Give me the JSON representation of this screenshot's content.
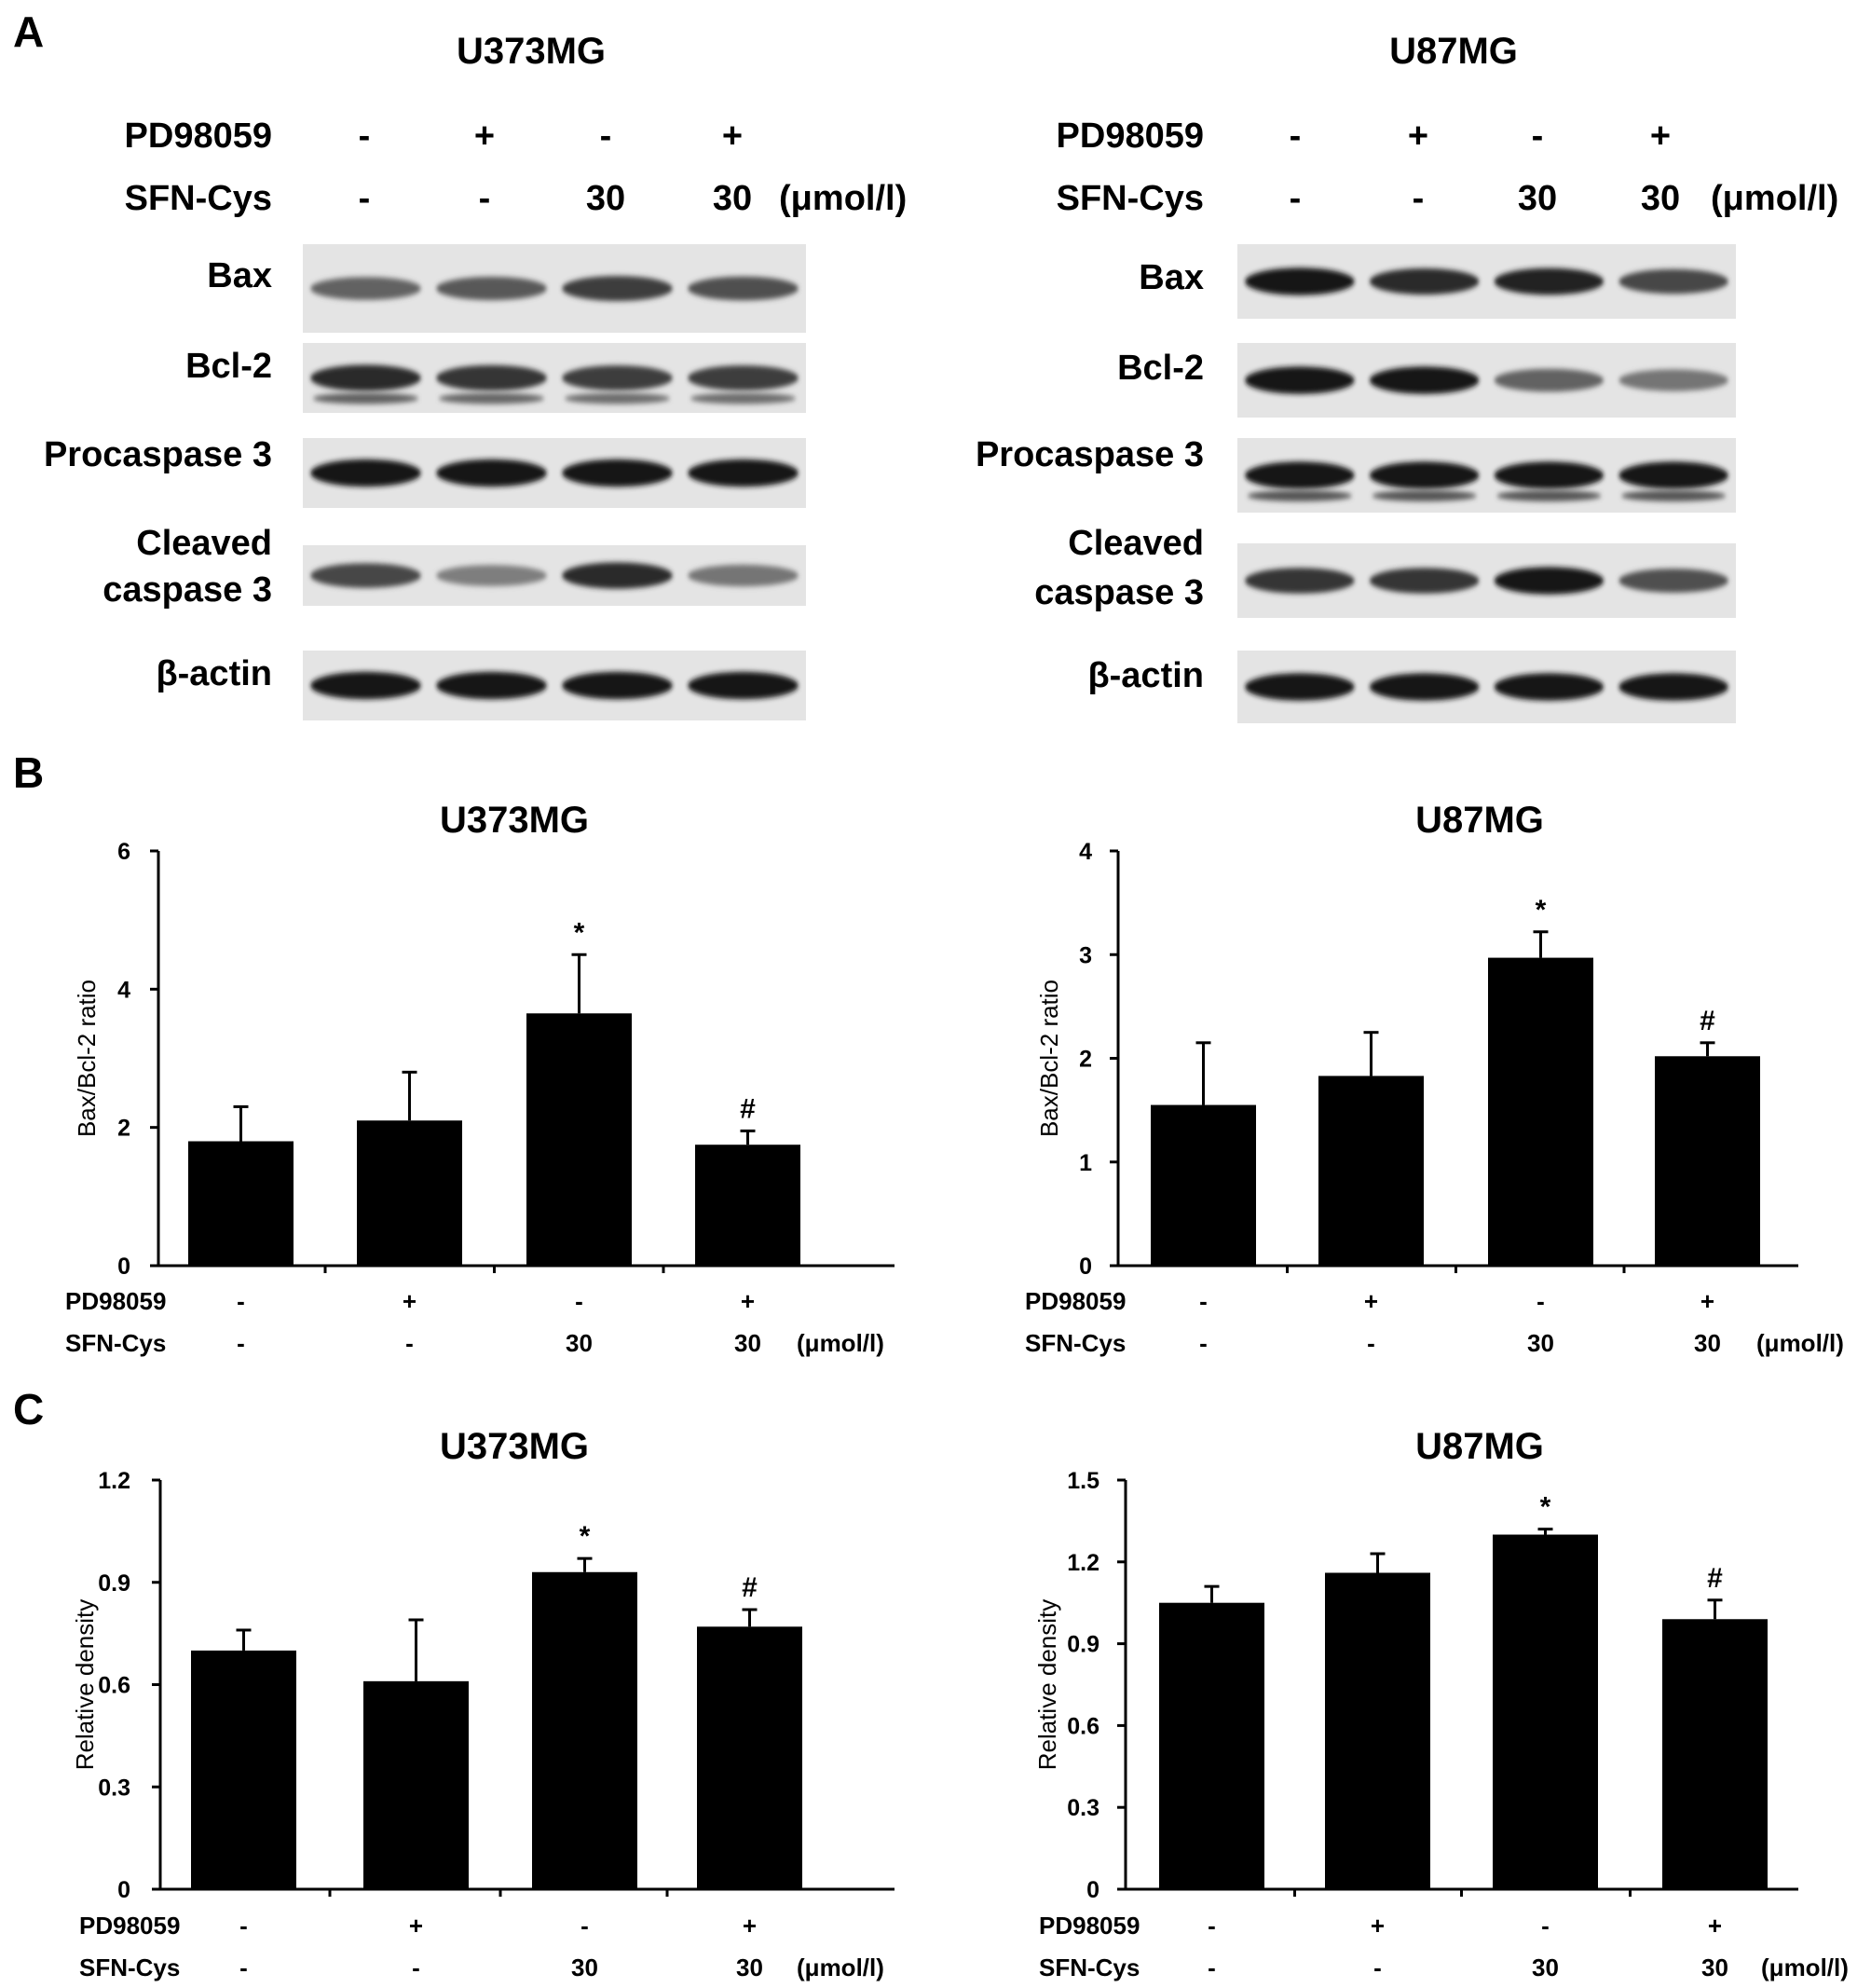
{
  "panels": [
    {
      "letter": "A"
    },
    {
      "letter": "B"
    },
    {
      "letter": "C"
    }
  ],
  "blots": [
    {
      "title": "U373MG",
      "treatments": [
        {
          "label": "PD98059",
          "values": [
            "-",
            "+",
            "-",
            "+"
          ]
        },
        {
          "label": "SFN-Cys",
          "values": [
            "-",
            "-",
            "30",
            "30"
          ],
          "unit": "(μmol/l)"
        }
      ],
      "bands": [
        {
          "label": "Bax",
          "intensity": [
            0.55,
            0.6,
            0.75,
            0.65
          ],
          "second_band": false
        },
        {
          "label": "Bcl-2",
          "intensity": [
            0.85,
            0.8,
            0.75,
            0.75
          ],
          "second_band": true
        },
        {
          "label": "Procaspase 3",
          "intensity": [
            0.95,
            0.95,
            0.95,
            0.95
          ],
          "second_band": false
        },
        {
          "label_lines": [
            "Cleaved",
            "caspase 3"
          ],
          "intensity": [
            0.7,
            0.4,
            0.85,
            0.45
          ],
          "second_band": false
        },
        {
          "label": "β-actin",
          "intensity": [
            0.95,
            0.95,
            0.95,
            0.95
          ],
          "second_band": false
        }
      ]
    },
    {
      "title": "U87MG",
      "treatments": [
        {
          "label": "PD98059",
          "values": [
            "-",
            "+",
            "-",
            "+"
          ]
        },
        {
          "label": "SFN-Cys",
          "values": [
            "-",
            "-",
            "30",
            "30"
          ],
          "unit": "(μmol/l)"
        }
      ],
      "bands": [
        {
          "label": "Bax",
          "intensity": [
            0.95,
            0.85,
            0.9,
            0.7
          ],
          "second_band": false
        },
        {
          "label": "Bcl-2",
          "intensity": [
            0.95,
            0.95,
            0.55,
            0.45
          ],
          "second_band": false
        },
        {
          "label": "Procaspase 3",
          "intensity": [
            0.95,
            0.95,
            0.95,
            0.95
          ],
          "second_band": true
        },
        {
          "label_lines": [
            "Cleaved",
            "caspase 3"
          ],
          "intensity": [
            0.8,
            0.8,
            0.95,
            0.65
          ],
          "second_band": false
        },
        {
          "label": "β-actin",
          "intensity": [
            0.95,
            0.95,
            0.95,
            0.95
          ],
          "second_band": false
        }
      ]
    }
  ],
  "chart_data": [
    {
      "type": "bar",
      "panel": "B",
      "title": "U373MG",
      "ylabel": "Bax/Bcl-2 ratio",
      "ylim": [
        0,
        6
      ],
      "yticks": [
        0,
        2,
        4,
        6
      ],
      "tick_labels": [
        "0",
        "2",
        "4",
        "6"
      ],
      "values": [
        1.8,
        2.1,
        3.65,
        1.75
      ],
      "errors": [
        0.5,
        0.7,
        0.85,
        0.2
      ],
      "annotations": [
        "",
        "",
        "*",
        "#"
      ],
      "rows": [
        {
          "label": "PD98059",
          "values": [
            "-",
            "+",
            "-",
            "+"
          ]
        },
        {
          "label": "SFN-Cys",
          "values": [
            "-",
            "-",
            "30",
            "30"
          ],
          "unit": "(μmol/l)"
        }
      ]
    },
    {
      "type": "bar",
      "panel": "B",
      "title": "U87MG",
      "ylabel": "Bax/Bcl-2 ratio",
      "ylim": [
        0,
        4
      ],
      "yticks": [
        0,
        1,
        2,
        3,
        4
      ],
      "tick_labels": [
        "0",
        "1",
        "2",
        "3",
        "4"
      ],
      "values": [
        1.55,
        1.83,
        2.97,
        2.02
      ],
      "errors": [
        0.6,
        0.42,
        0.25,
        0.13
      ],
      "annotations": [
        "",
        "",
        "*",
        "#"
      ],
      "rows": [
        {
          "label": "PD98059",
          "values": [
            "-",
            "+",
            "-",
            "+"
          ]
        },
        {
          "label": "SFN-Cys",
          "values": [
            "-",
            "-",
            "30",
            "30"
          ],
          "unit": "(μmol/l)"
        }
      ]
    },
    {
      "type": "bar",
      "panel": "C",
      "title": "U373MG",
      "ylabel": "Relative density",
      "ylim": [
        0,
        1.2
      ],
      "yticks": [
        0,
        0.3,
        0.6,
        0.9,
        1.2
      ],
      "tick_labels": [
        "0",
        "0.3",
        "0.6",
        "0.9",
        "1.2"
      ],
      "values": [
        0.7,
        0.61,
        0.93,
        0.77
      ],
      "errors": [
        0.06,
        0.18,
        0.04,
        0.05
      ],
      "annotations": [
        "",
        "",
        "*",
        "#"
      ],
      "rows": [
        {
          "label": "PD98059",
          "values": [
            "-",
            "+",
            "-",
            "+"
          ]
        },
        {
          "label": "SFN-Cys",
          "values": [
            "-",
            "-",
            "30",
            "30"
          ],
          "unit": "(μmol/l)"
        }
      ]
    },
    {
      "type": "bar",
      "panel": "C",
      "title": "U87MG",
      "ylabel": "Relative density",
      "ylim": [
        0,
        1.5
      ],
      "yticks": [
        0,
        0.3,
        0.6,
        0.9,
        1.2,
        1.5
      ],
      "tick_labels": [
        "0",
        "0.3",
        "0.6",
        "0.9",
        "1.2",
        "1.5"
      ],
      "values": [
        1.05,
        1.16,
        1.3,
        0.99
      ],
      "errors": [
        0.06,
        0.07,
        0.02,
        0.07
      ],
      "annotations": [
        "",
        "",
        "*",
        "#"
      ],
      "rows": [
        {
          "label": "PD98059",
          "values": [
            "-",
            "+",
            "-",
            "+"
          ]
        },
        {
          "label": "SFN-Cys",
          "values": [
            "-",
            "-",
            "30",
            "30"
          ],
          "unit": "(μmol/l)"
        }
      ]
    }
  ]
}
